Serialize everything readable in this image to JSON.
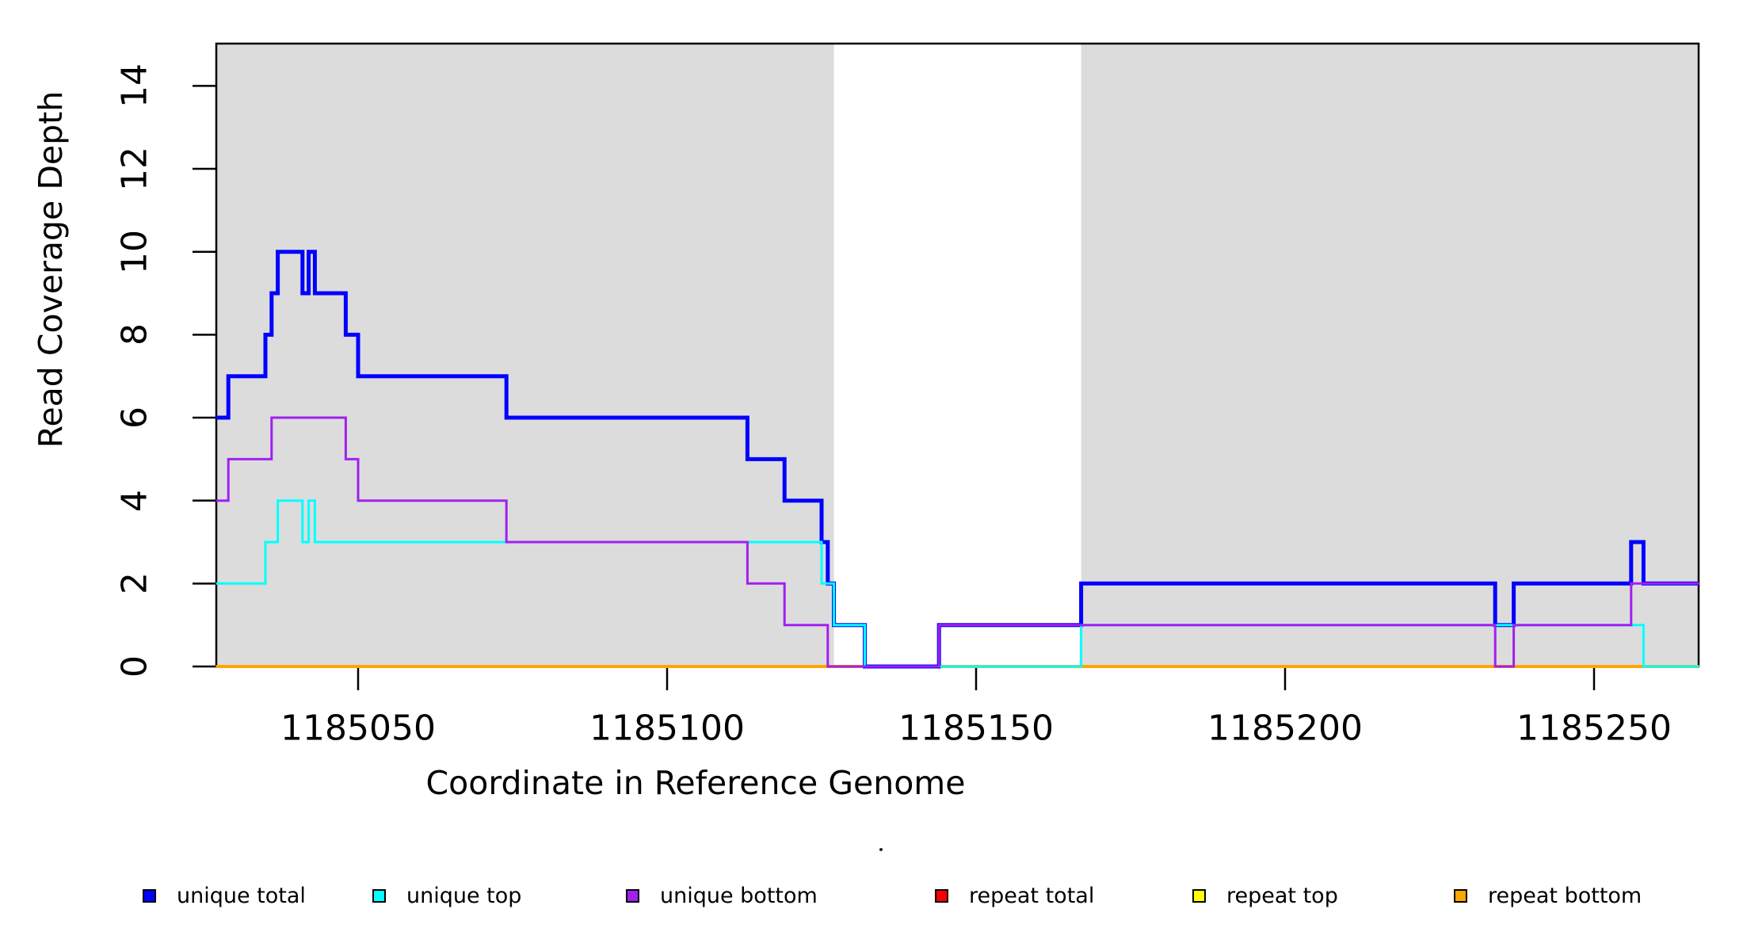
{
  "figure": {
    "x_axis_title": "Coordinate in Reference Genome",
    "y_axis_title": "Read Coverage Depth"
  },
  "legend": {
    "items": [
      {
        "label": "unique total",
        "color": "#0000FF"
      },
      {
        "label": "unique top",
        "color": "#00FFFF"
      },
      {
        "label": "unique bottom",
        "color": "#A020F0"
      },
      {
        "label": "repeat total",
        "color": "#FF0000"
      },
      {
        "label": "repeat top",
        "color": "#FFFF00"
      },
      {
        "label": "repeat bottom",
        "color": "#FFA500"
      }
    ]
  },
  "chart_data": {
    "type": "line",
    "step": true,
    "title": "",
    "xlabel": "Coordinate in Reference Genome",
    "ylabel": "Read Coverage Depth",
    "xlim": [
      1185027,
      1185267
    ],
    "ylim": [
      0,
      15
    ],
    "x_ticks": [
      1185050,
      1185100,
      1185150,
      1185200,
      1185250
    ],
    "y_ticks": [
      0,
      2,
      4,
      6,
      8,
      10,
      12,
      14
    ],
    "grid": false,
    "legend_position": "bottom",
    "shade_color": "#DCDCDC",
    "shaded_regions": [
      {
        "start": 1185027,
        "end": 1185127
      },
      {
        "start": 1185167,
        "end": 1185267
      }
    ],
    "series": [
      {
        "name": "repeat total",
        "color": "#FF0000",
        "width": 3,
        "levels": [
          [
            1185027,
            0
          ]
        ],
        "end": 1185267
      },
      {
        "name": "repeat top",
        "color": "#FFFF00",
        "width": 3,
        "levels": [
          [
            1185027,
            0
          ]
        ],
        "end": 1185267
      },
      {
        "name": "repeat bottom",
        "color": "#FFA500",
        "width": 4,
        "levels": [
          [
            1185027,
            0
          ]
        ],
        "end": 1185267
      },
      {
        "name": "unique total",
        "color": "#0000FF",
        "width": 5,
        "levels": [
          [
            1185027,
            6
          ],
          [
            1185029,
            7
          ],
          [
            1185035,
            8
          ],
          [
            1185036,
            9
          ],
          [
            1185037,
            10
          ],
          [
            1185041,
            9
          ],
          [
            1185042,
            10
          ],
          [
            1185043,
            9
          ],
          [
            1185048,
            8
          ],
          [
            1185050,
            7
          ],
          [
            1185074,
            6
          ],
          [
            1185113,
            5
          ],
          [
            1185119,
            4
          ],
          [
            1185125,
            3
          ],
          [
            1185126,
            2
          ],
          [
            1185127,
            1
          ],
          [
            1185132,
            0
          ],
          [
            1185144,
            1
          ],
          [
            1185167,
            2
          ],
          [
            1185234,
            1
          ],
          [
            1185237,
            2
          ],
          [
            1185256,
            3
          ],
          [
            1185258,
            2
          ]
        ],
        "end": 1185267
      },
      {
        "name": "unique top",
        "color": "#00FFFF",
        "width": 3,
        "levels": [
          [
            1185027,
            2
          ],
          [
            1185035,
            3
          ],
          [
            1185037,
            4
          ],
          [
            1185041,
            3
          ],
          [
            1185042,
            4
          ],
          [
            1185043,
            3
          ],
          [
            1185125,
            2
          ],
          [
            1185127,
            1
          ],
          [
            1185132,
            0
          ],
          [
            1185167,
            1
          ],
          [
            1185258,
            0
          ]
        ],
        "end": 1185267
      },
      {
        "name": "unique bottom",
        "color": "#A020F0",
        "width": 3,
        "levels": [
          [
            1185027,
            4
          ],
          [
            1185029,
            5
          ],
          [
            1185036,
            6
          ],
          [
            1185048,
            5
          ],
          [
            1185050,
            4
          ],
          [
            1185074,
            3
          ],
          [
            1185113,
            2
          ],
          [
            1185119,
            1
          ],
          [
            1185126,
            0
          ],
          [
            1185144,
            1
          ],
          [
            1185234,
            0
          ],
          [
            1185237,
            1
          ],
          [
            1185256,
            2
          ]
        ],
        "end": 1185267
      }
    ]
  }
}
